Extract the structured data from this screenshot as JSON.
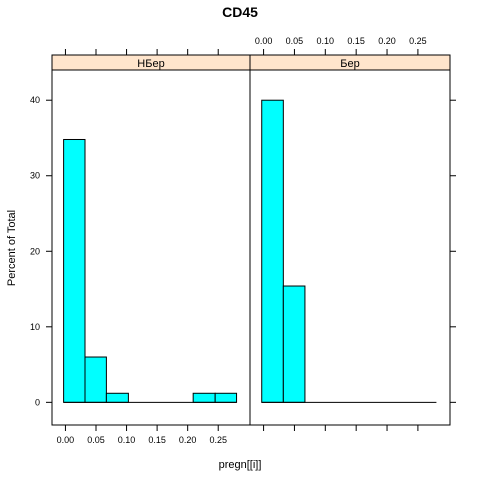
{
  "chart_data": {
    "type": "bar",
    "title": "CD45",
    "xlabel": "pregn[[i]]",
    "ylabel": "Percent of Total",
    "ylim": [
      -3,
      44
    ],
    "xlim": [
      -0.022,
      0.302
    ],
    "x_ticks": [
      0.0,
      0.05,
      0.1,
      0.15,
      0.2,
      0.25
    ],
    "x_tick_labels": [
      "0.00",
      "0.05",
      "0.10",
      "0.15",
      "0.20",
      "0.25"
    ],
    "y_ticks": [
      0,
      10,
      20,
      30,
      40
    ],
    "y_tick_labels": [
      "0",
      "10",
      "20",
      "30",
      "40"
    ],
    "bar_color": "#00FFFF",
    "strip_color": "#FFE5CC",
    "panels": [
      {
        "label": "НБер",
        "bins": [
          {
            "x0": -0.003,
            "x1": 0.032,
            "value": 34.8
          },
          {
            "x0": 0.032,
            "x1": 0.067,
            "value": 6.0
          },
          {
            "x0": 0.067,
            "x1": 0.103,
            "value": 1.2
          },
          {
            "x0": 0.103,
            "x1": 0.138,
            "value": 0
          },
          {
            "x0": 0.138,
            "x1": 0.174,
            "value": 0
          },
          {
            "x0": 0.174,
            "x1": 0.209,
            "value": 0
          },
          {
            "x0": 0.209,
            "x1": 0.245,
            "value": 1.2
          },
          {
            "x0": 0.245,
            "x1": 0.28,
            "value": 1.2
          }
        ]
      },
      {
        "label": "Бер",
        "bins": [
          {
            "x0": -0.003,
            "x1": 0.032,
            "value": 40.0
          },
          {
            "x0": 0.032,
            "x1": 0.067,
            "value": 15.4
          }
        ],
        "baseline_to": 0.28
      }
    ]
  }
}
